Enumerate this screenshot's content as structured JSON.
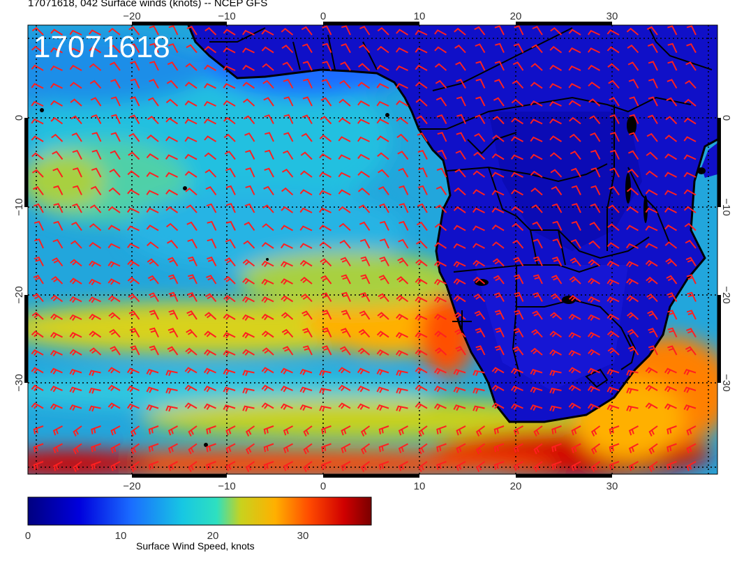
{
  "title": "17071618, 042 Surface winds (knots) -- NCEP GFS",
  "stamp": "17071618",
  "map": {
    "lon_range": [
      -31,
      41
    ],
    "lat_range": [
      8,
      -42
    ],
    "lon_ticks": [
      "−20",
      "−10",
      "0",
      "10",
      "20",
      "30"
    ],
    "lat_ticks": [
      "0",
      "−10",
      "−20",
      "−30"
    ],
    "barb_color": "#ff1f1f",
    "coast_color": "#000000",
    "grid": "dotted"
  },
  "colorbar": {
    "label": "Surface Wind Speed, knots",
    "range": [
      0,
      37
    ],
    "ticks": [
      "0",
      "10",
      "20",
      "30"
    ],
    "colors": [
      "#000080",
      "#0000dd",
      "#1a6cff",
      "#17c7e3",
      "#2ee0c0",
      "#c8d21e",
      "#ffb000",
      "#ff4a00",
      "#d00000",
      "#7a0000"
    ]
  }
}
